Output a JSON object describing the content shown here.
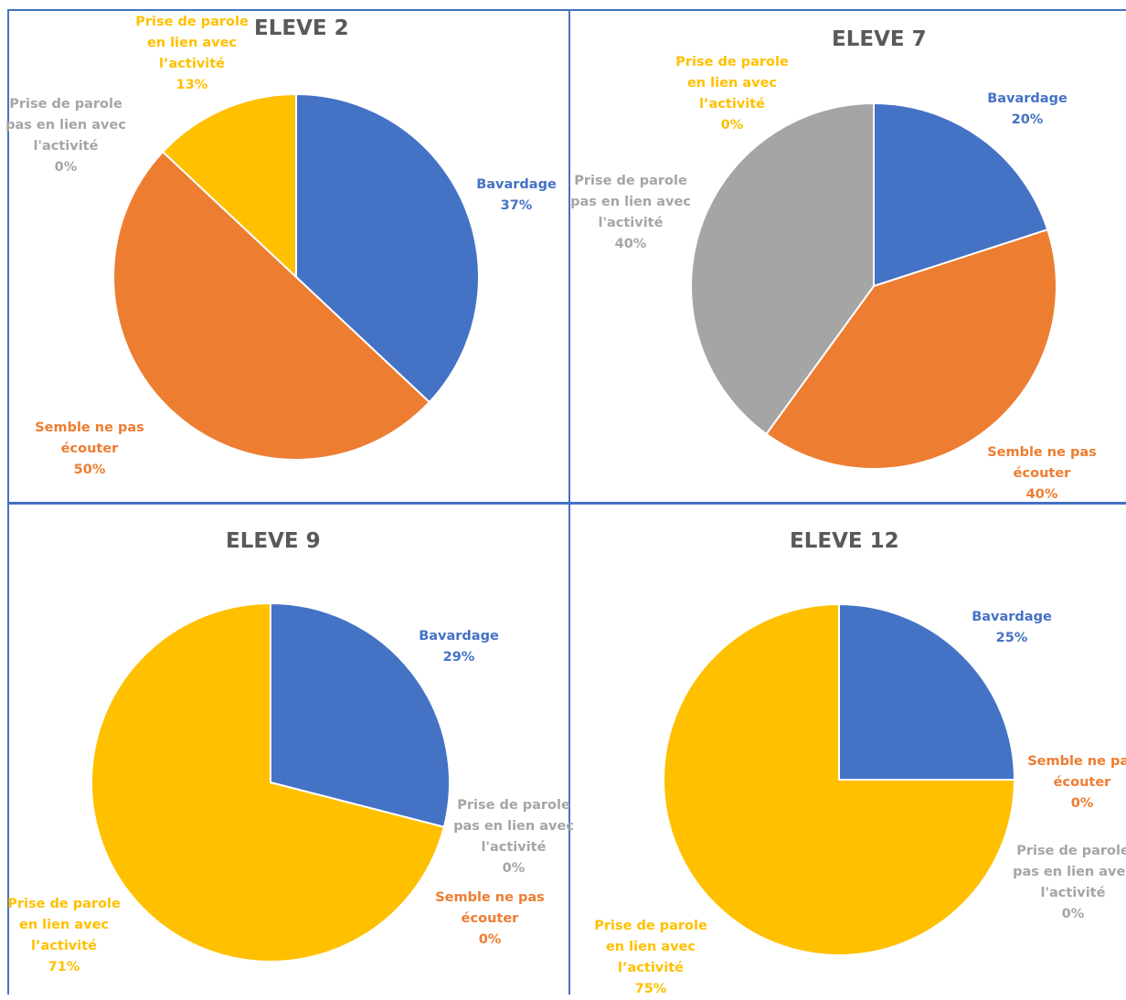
{
  "colors": {
    "bavardage": "#4472c4",
    "semble": "#ed7d31",
    "hors": "#a5a5a5",
    "prise": "#ffc000",
    "border": "#4472c4",
    "title": "#595959"
  },
  "chart_data": [
    {
      "type": "pie",
      "title": "ELEVE 2",
      "slices": [
        {
          "key": "bavardage",
          "label": [
            "Bavardage"
          ],
          "value": 37,
          "pct": "37%"
        },
        {
          "key": "semble",
          "label": [
            "Semble ne pas",
            "écouter"
          ],
          "value": 50,
          "pct": "50%"
        },
        {
          "key": "hors",
          "label": [
            "Prise de parole",
            "pas en lien avec",
            "l'activité"
          ],
          "value": 0,
          "pct": "0%"
        },
        {
          "key": "prise",
          "label": [
            "Prise de parole",
            "en lien avec",
            "l’activité"
          ],
          "value": 13,
          "pct": "13%"
        }
      ]
    },
    {
      "type": "pie",
      "title": "ELEVE 7",
      "slices": [
        {
          "key": "bavardage",
          "label": [
            "Bavardage"
          ],
          "value": 20,
          "pct": "20%"
        },
        {
          "key": "semble",
          "label": [
            "Semble ne pas",
            "écouter"
          ],
          "value": 40,
          "pct": "40%"
        },
        {
          "key": "hors",
          "label": [
            "Prise de parole",
            "pas en lien avec",
            "l'activité"
          ],
          "value": 40,
          "pct": "40%"
        },
        {
          "key": "prise",
          "label": [
            "Prise de parole",
            "en lien avec",
            "l’activité"
          ],
          "value": 0,
          "pct": "0%"
        }
      ]
    },
    {
      "type": "pie",
      "title": "ELEVE 9",
      "slices": [
        {
          "key": "bavardage",
          "label": [
            "Bavardage"
          ],
          "value": 29,
          "pct": "29%"
        },
        {
          "key": "hors",
          "label": [
            "Prise de parole",
            "pas en lien avec",
            "l'activité"
          ],
          "value": 0,
          "pct": "0%"
        },
        {
          "key": "semble",
          "label": [
            "Semble ne pas",
            "écouter"
          ],
          "value": 0,
          "pct": "0%"
        },
        {
          "key": "prise",
          "label": [
            "Prise de parole",
            "en lien avec",
            "l’activité"
          ],
          "value": 71,
          "pct": "71%"
        }
      ]
    },
    {
      "type": "pie",
      "title": "ELEVE 12",
      "slices": [
        {
          "key": "bavardage",
          "label": [
            "Bavardage"
          ],
          "value": 25,
          "pct": "25%"
        },
        {
          "key": "semble",
          "label": [
            "Semble ne pas",
            "écouter"
          ],
          "value": 0,
          "pct": "0%"
        },
        {
          "key": "hors",
          "label": [
            "Prise de parole",
            "pas en lien avec",
            "l'activité"
          ],
          "value": 0,
          "pct": "0%"
        },
        {
          "key": "prise",
          "label": [
            "Prise de parole",
            "en lien avec",
            "l’activité"
          ],
          "value": 75,
          "pct": "75%"
        }
      ]
    }
  ]
}
